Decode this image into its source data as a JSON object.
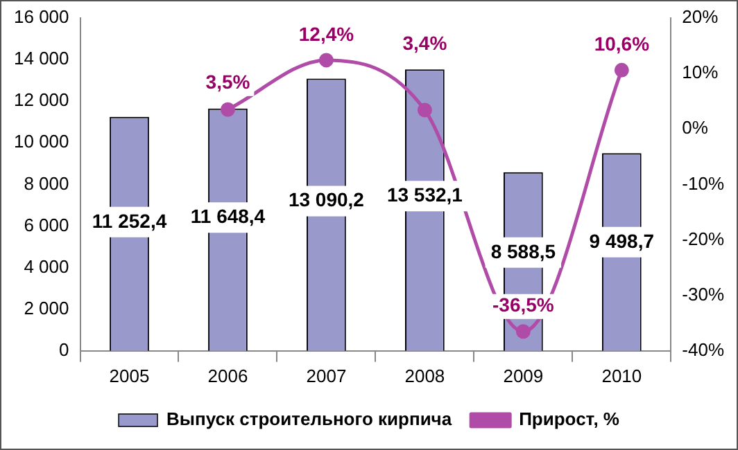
{
  "chart_data": {
    "type": "bar",
    "categories": [
      "2005",
      "2006",
      "2007",
      "2008",
      "2009",
      "2010"
    ],
    "series": [
      {
        "name": "Выпуск строительного кирпича",
        "color": "#9999cc",
        "values": [
          11252.4,
          11648.4,
          13090.2,
          13532.1,
          8588.5,
          9498.7
        ],
        "value_labels": [
          "11 252,4",
          "11 648,4",
          "13 090,2",
          "13 532,1",
          "8 588,5",
          "9 498,7"
        ]
      },
      {
        "name": "Прирост, %",
        "type": "line",
        "axis": "y2",
        "color": "#b04ca8",
        "values": [
          null,
          3.5,
          12.4,
          3.4,
          -36.5,
          10.6
        ],
        "value_labels": [
          null,
          "3,5%",
          "12,4%",
          "3,4%",
          "-36,5%",
          "10,6%"
        ]
      }
    ],
    "ylim": [
      0,
      16000
    ],
    "yticks": [
      {
        "value": 0,
        "label": "0"
      },
      {
        "value": 2000,
        "label": "2 000"
      },
      {
        "value": 4000,
        "label": "4 000"
      },
      {
        "value": 6000,
        "label": "6 000"
      },
      {
        "value": 8000,
        "label": "8 000"
      },
      {
        "value": 10000,
        "label": "10 000"
      },
      {
        "value": 12000,
        "label": "12 000"
      },
      {
        "value": 14000,
        "label": "14 000"
      },
      {
        "value": 16000,
        "label": "16 000"
      }
    ],
    "y2lim": [
      -40,
      20
    ],
    "y2ticks": [
      {
        "value": -40,
        "label": "-40%"
      },
      {
        "value": -30,
        "label": "-30%"
      },
      {
        "value": -20,
        "label": "-20%"
      },
      {
        "value": -10,
        "label": "-10%"
      },
      {
        "value": 0,
        "label": "0%"
      },
      {
        "value": 10,
        "label": "10%"
      },
      {
        "value": 20,
        "label": "20%"
      }
    ],
    "grid": false,
    "legend": "bottom",
    "marker": "circle",
    "line_style": "solid"
  }
}
